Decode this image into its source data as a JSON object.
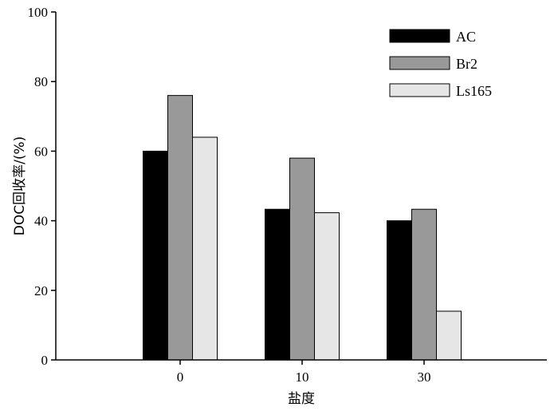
{
  "chart_data": {
    "type": "bar",
    "categories": [
      "0",
      "10",
      "30"
    ],
    "series": [
      {
        "name": "AC",
        "values": [
          60,
          43.3,
          40
        ],
        "color": "#000000"
      },
      {
        "name": "Br2",
        "values": [
          76,
          58,
          43.3
        ],
        "color": "#999999"
      },
      {
        "name": "Ls165",
        "values": [
          64,
          42.3,
          14
        ],
        "color": "#e6e6e6"
      }
    ],
    "xlabel": "盐度",
    "ylabel": "DOC回收率/(%)",
    "ylim": [
      0,
      100
    ],
    "yticks": [
      0,
      20,
      40,
      60,
      80,
      100
    ],
    "grid": false,
    "legend_position": "top-right"
  }
}
